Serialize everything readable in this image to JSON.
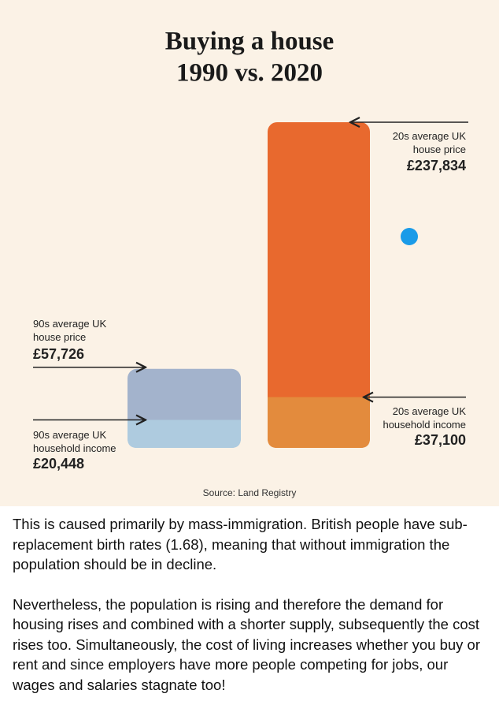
{
  "chart_data": {
    "type": "bar",
    "title": [
      "Buying a house",
      "1990 vs. 2020"
    ],
    "source": "Source: Land Registry",
    "bars": [
      {
        "price_label": "90s average UK house price",
        "price": 57726,
        "price_value_label": "£57,726",
        "price_color": "#a3b3cc",
        "income_label": "90s average UK household income",
        "income": 20448,
        "income_value_label": "£20,448",
        "income_color": "#aecbdf"
      },
      {
        "price_label": "20s average UK house price",
        "price": 237834,
        "price_value_label": "£237,834",
        "price_color": "#e8692e",
        "income_label": "20s average UK household income",
        "income": 37100,
        "income_value_label": "£37,100",
        "income_color": "#e38b3d"
      }
    ]
  },
  "post": {
    "paragraphs": [
      "This is caused primarily by mass-immigration. British people have sub-replacement birth rates (1.68), meaning that without immigration the population should be in decline.",
      "Nevertheless, the population is rising and therefore the demand for housing rises and combined with a shorter supply, subsequently the cost rises too. Simultaneously, the cost of living increases whether you buy or rent and since employers have more people competing for jobs, our wages and salaries stagnate too!"
    ]
  }
}
